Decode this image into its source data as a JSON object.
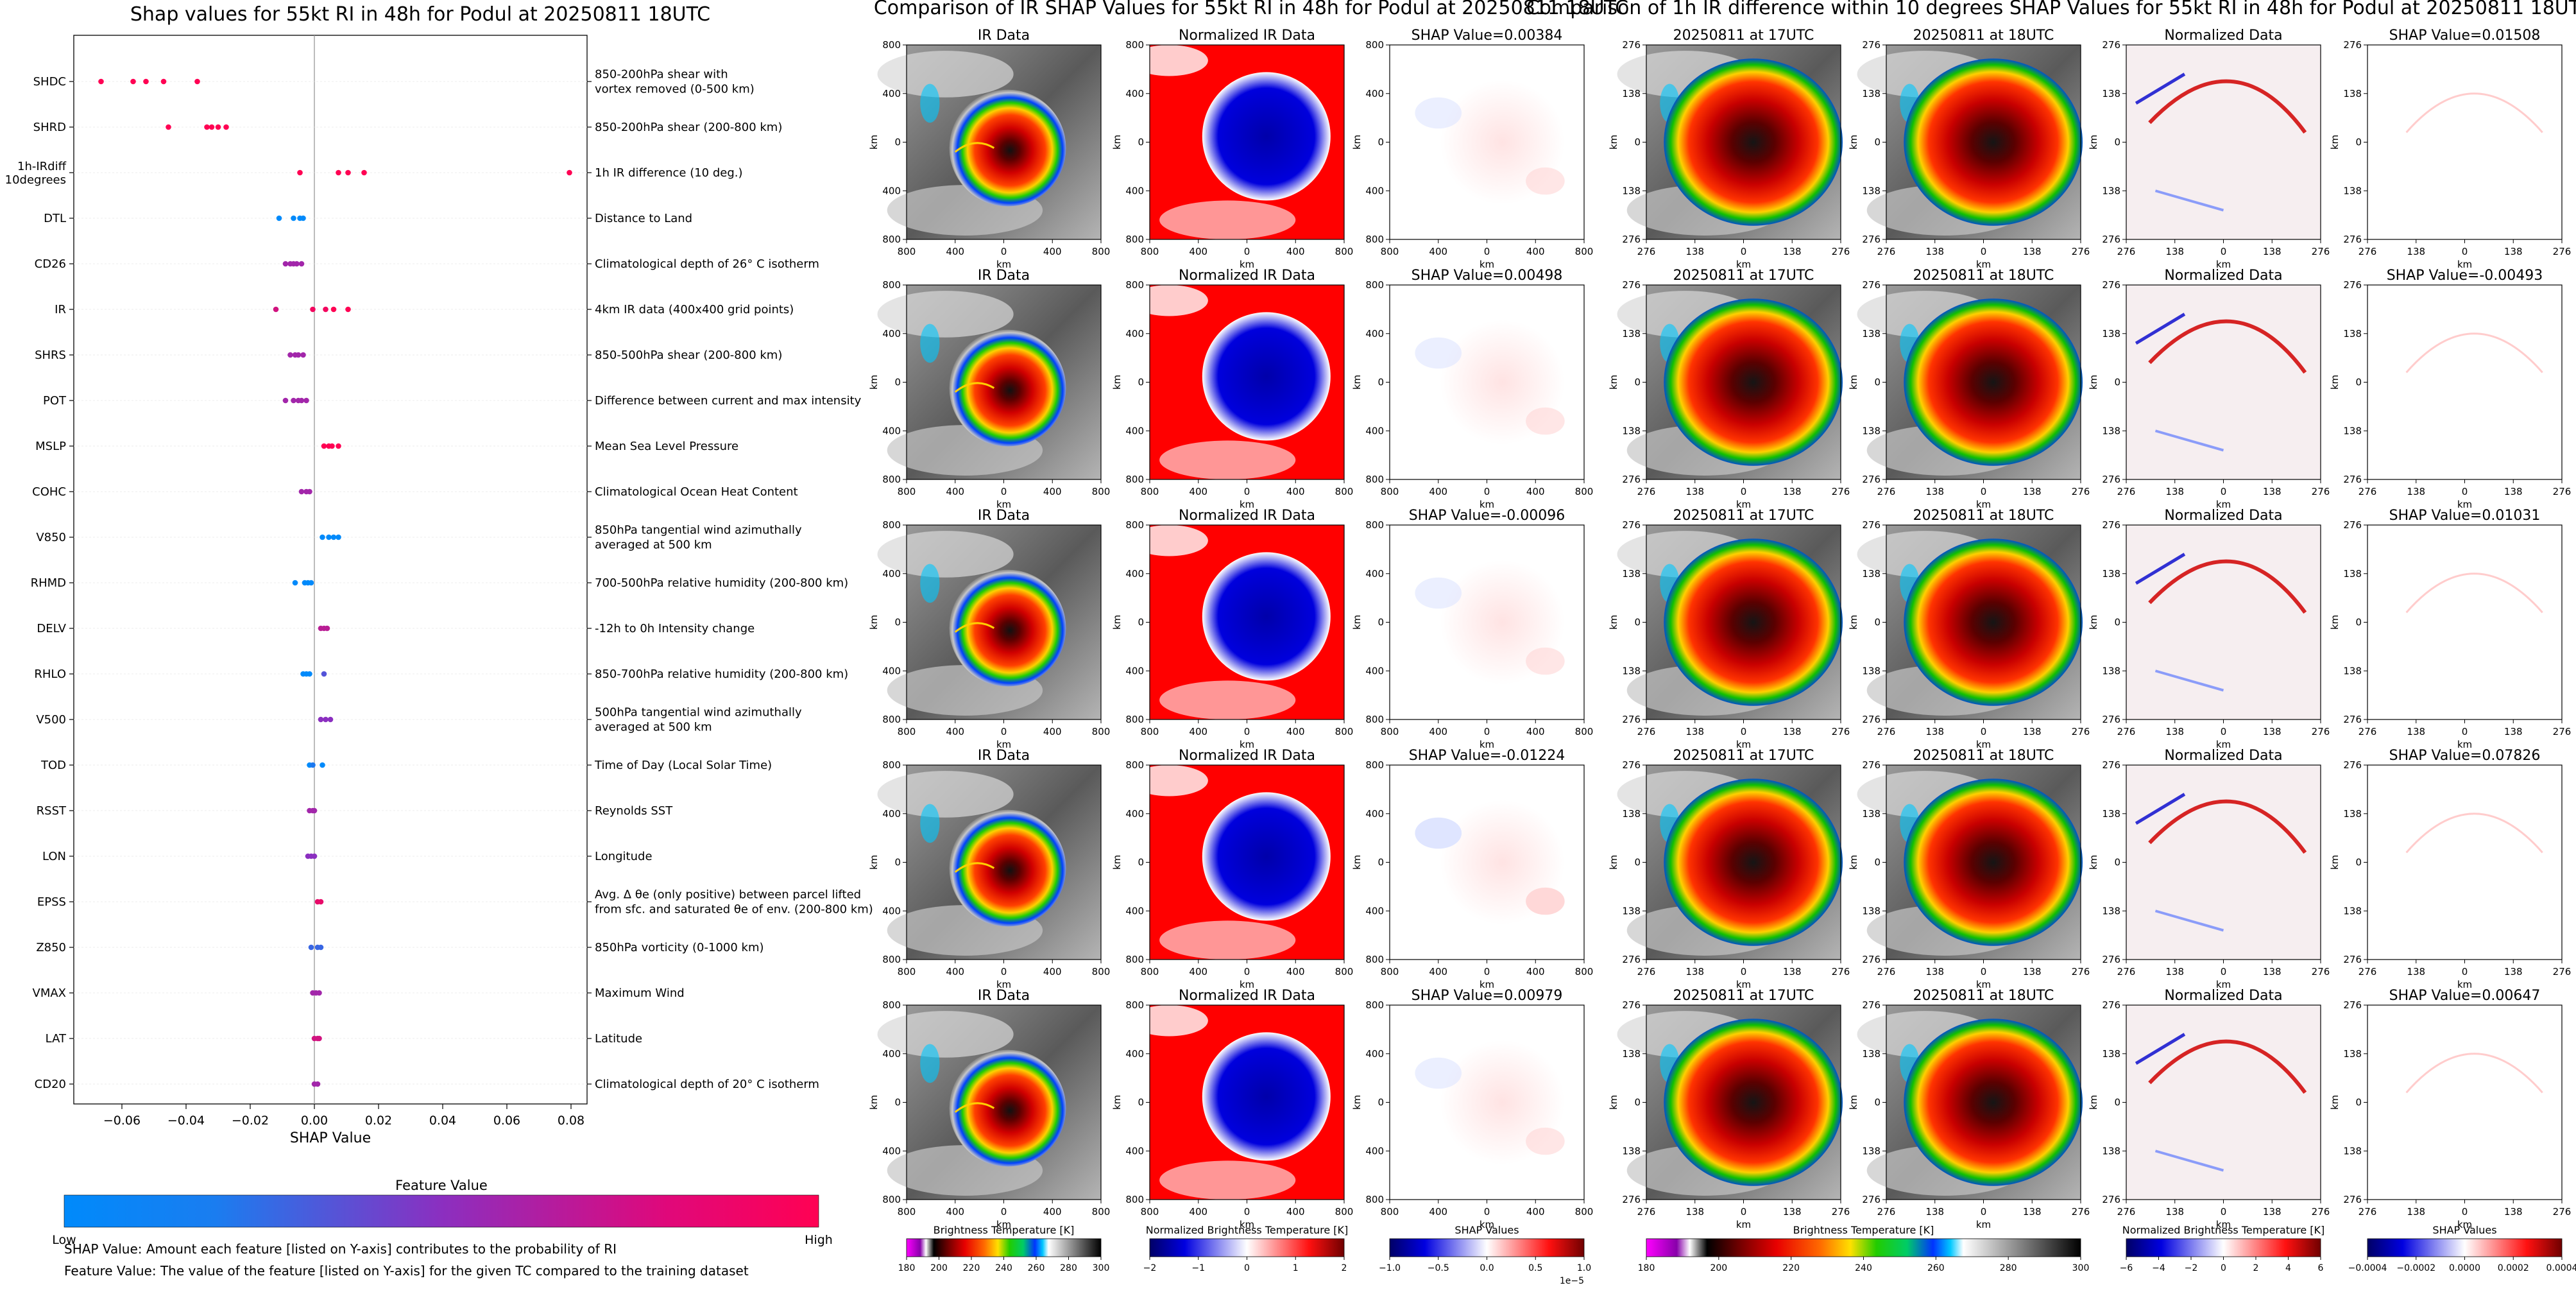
{
  "chart_data": [
    {
      "type": "scatter",
      "title": "Shap values for 55kt RI in 48h for Podul at 20250811 18UTC",
      "xlabel": "SHAP Value",
      "xlim": [
        -0.075,
        0.085
      ],
      "xticks": [
        -0.06,
        -0.04,
        -0.02,
        0.0,
        0.02,
        0.04,
        0.06,
        0.08
      ],
      "xtick_labels": [
        "−0.06",
        "−0.04",
        "−0.02",
        "0.00",
        "0.02",
        "0.04",
        "0.06",
        "0.08"
      ],
      "colorbar": {
        "label": "Feature Value",
        "low": "Low",
        "high": "High",
        "colors": [
          "#008afb",
          "#8b2fc0",
          "#ff0153"
        ]
      },
      "features": [
        {
          "name": "SHDC",
          "desc": [
            "850-200hPa shear with",
            "vortex removed (0-500 km)"
          ],
          "points": [
            [
              -0.0665,
              1
            ],
            [
              -0.0565,
              1
            ],
            [
              -0.0525,
              1
            ],
            [
              -0.047,
              1
            ],
            [
              -0.0365,
              1
            ]
          ]
        },
        {
          "name": "SHRD",
          "desc": [
            "850-200hPa shear (200-800 km)"
          ],
          "points": [
            [
              -0.0455,
              1
            ],
            [
              -0.0335,
              1
            ],
            [
              -0.032,
              1
            ],
            [
              -0.03,
              1
            ],
            [
              -0.0275,
              1
            ]
          ]
        },
        {
          "name": "1h-IRdiff 10degrees",
          "name_lines": [
            "1h-IRdiff",
            "10degrees"
          ],
          "desc": [
            "1h IR difference (10 deg.)"
          ],
          "points": [
            [
              -0.0045,
              1
            ],
            [
              0.0075,
              1
            ],
            [
              0.0105,
              1
            ],
            [
              0.0155,
              1
            ],
            [
              0.0795,
              1
            ]
          ]
        },
        {
          "name": "DTL",
          "desc": [
            "Distance to Land"
          ],
          "points": [
            [
              -0.011,
              0
            ],
            [
              -0.0065,
              0
            ],
            [
              -0.0045,
              0
            ],
            [
              -0.0035,
              0
            ]
          ]
        },
        {
          "name": "CD26",
          "desc": [
            "Climatological depth of 26° C isotherm"
          ],
          "points": [
            [
              -0.009,
              0.6
            ],
            [
              -0.0075,
              0.6
            ],
            [
              -0.0065,
              0.6
            ],
            [
              -0.0055,
              0.6
            ],
            [
              -0.004,
              0.6
            ]
          ]
        },
        {
          "name": "IR",
          "desc": [
            "4km IR data (400x400 grid points)"
          ],
          "points": [
            [
              -0.012,
              0.8
            ],
            [
              -0.0005,
              0.95
            ],
            [
              0.0035,
              0.95
            ],
            [
              0.006,
              1
            ],
            [
              0.0105,
              1
            ]
          ]
        },
        {
          "name": "SHRS",
          "desc": [
            "850-500hPa shear (200-800 km)"
          ],
          "points": [
            [
              -0.0075,
              0.6
            ],
            [
              -0.006,
              0.6
            ],
            [
              -0.005,
              0.6
            ],
            [
              -0.0035,
              0.6
            ]
          ]
        },
        {
          "name": "POT",
          "desc": [
            "Difference between current and max intensity"
          ],
          "points": [
            [
              -0.009,
              0.6
            ],
            [
              -0.0065,
              0.6
            ],
            [
              -0.005,
              0.6
            ],
            [
              -0.004,
              0.6
            ],
            [
              -0.0025,
              0.6
            ]
          ]
        },
        {
          "name": "MSLP",
          "desc": [
            "Mean Sea Level Pressure"
          ],
          "points": [
            [
              0.003,
              1
            ],
            [
              0.0045,
              1
            ],
            [
              0.0055,
              1
            ],
            [
              0.0075,
              1
            ]
          ]
        },
        {
          "name": "COHC",
          "desc": [
            "Climatological Ocean Heat Content"
          ],
          "points": [
            [
              -0.004,
              0.6
            ],
            [
              -0.0025,
              0.6
            ],
            [
              -0.0015,
              0.6
            ]
          ]
        },
        {
          "name": "V850",
          "desc": [
            "850hPa tangential wind azimuthally",
            "averaged at 500 km"
          ],
          "points": [
            [
              0.0025,
              0
            ],
            [
              0.0045,
              0
            ],
            [
              0.006,
              0
            ],
            [
              0.0075,
              0
            ]
          ]
        },
        {
          "name": "RHMD",
          "desc": [
            "700-500hPa relative humidity (200-800 km)"
          ],
          "points": [
            [
              -0.006,
              0
            ],
            [
              -0.003,
              0
            ],
            [
              -0.002,
              0
            ],
            [
              -0.001,
              0
            ]
          ]
        },
        {
          "name": "DELV",
          "desc": [
            "-12h to 0h Intensity change"
          ],
          "points": [
            [
              0.002,
              0.7
            ],
            [
              0.003,
              0.7
            ],
            [
              0.004,
              0.7
            ]
          ]
        },
        {
          "name": "RHLO",
          "desc": [
            "850-700hPa relative humidity (200-800 km)"
          ],
          "points": [
            [
              -0.0035,
              0
            ],
            [
              -0.0025,
              0
            ],
            [
              -0.0015,
              0
            ],
            [
              0.003,
              0.3
            ]
          ]
        },
        {
          "name": "V500",
          "desc": [
            "500hPa tangential wind azimuthally",
            "averaged at 500 km"
          ],
          "points": [
            [
              0.002,
              0.5
            ],
            [
              0.0035,
              0.5
            ],
            [
              0.005,
              0.5
            ]
          ]
        },
        {
          "name": "TOD",
          "desc": [
            "Time of Day (Local Solar Time)"
          ],
          "points": [
            [
              -0.0015,
              0
            ],
            [
              -0.0005,
              0.1
            ],
            [
              0.0025,
              0
            ]
          ]
        },
        {
          "name": "RSST",
          "desc": [
            "Reynolds SST"
          ],
          "points": [
            [
              -0.0015,
              0.6
            ],
            [
              -0.0005,
              0.6
            ],
            [
              0.0,
              0.6
            ]
          ]
        },
        {
          "name": "LON",
          "desc": [
            "Longitude"
          ],
          "points": [
            [
              -0.002,
              0.5
            ],
            [
              -0.001,
              0.5
            ],
            [
              0.0,
              0.5
            ]
          ]
        },
        {
          "name": "EPSS",
          "desc": [
            "Avg. Δ θe (only positive) between parcel lifted",
            "from sfc. and saturated θe of env. (200-800 km)"
          ],
          "points": [
            [
              0.001,
              0.9
            ],
            [
              0.002,
              0.9
            ]
          ]
        },
        {
          "name": "Z850",
          "desc": [
            "850hPa vorticity (0-1000 km)"
          ],
          "points": [
            [
              -0.001,
              0.2
            ],
            [
              0.001,
              0.2
            ],
            [
              0.002,
              0.2
            ]
          ]
        },
        {
          "name": "VMAX",
          "desc": [
            "Maximum Wind"
          ],
          "points": [
            [
              -0.0005,
              0.6
            ],
            [
              0.0005,
              0.6
            ],
            [
              0.0015,
              0.6
            ]
          ]
        },
        {
          "name": "LAT",
          "desc": [
            "Latitude"
          ],
          "points": [
            [
              0.0,
              0.8
            ],
            [
              0.001,
              0.8
            ],
            [
              0.0015,
              0.8
            ]
          ]
        },
        {
          "name": "CD20",
          "desc": [
            "Climatological depth of 20° C isotherm"
          ],
          "points": [
            [
              0.0,
              0.6
            ],
            [
              0.001,
              0.6
            ]
          ]
        }
      ]
    },
    {
      "type": "heatmap",
      "title": "Comparison of IR SHAP Values for 55kt RI in 48h for Podul at 20250811 18UTC",
      "xlabel": "km",
      "ylabel": "km",
      "ticks": [
        "800",
        "400",
        "0",
        "400",
        "800"
      ],
      "rows": [
        {
          "panels": [
            "IR Data",
            "Normalized IR Data",
            "SHAP Value=0.00384"
          ]
        },
        {
          "panels": [
            "IR Data",
            "Normalized IR Data",
            "SHAP Value=0.00498"
          ]
        },
        {
          "panels": [
            "IR Data",
            "Normalized IR Data",
            "SHAP Value=-0.00096"
          ]
        },
        {
          "panels": [
            "IR Data",
            "Normalized IR Data",
            "SHAP Value=-0.01224"
          ]
        },
        {
          "panels": [
            "IR Data",
            "Normalized IR Data",
            "SHAP Value=0.00979"
          ]
        }
      ],
      "colorbars": [
        {
          "label": "Brightness Temperature [K]",
          "ticks": [
            "180",
            "200",
            "220",
            "240",
            "260",
            "280",
            "300"
          ]
        },
        {
          "label": "Normalized Brightness Temperature [K]",
          "ticks": [
            "−2",
            "−1",
            "0",
            "1",
            "2"
          ]
        },
        {
          "label": "SHAP Values",
          "ticks": [
            "−1.0",
            "−0.5",
            "0.0",
            "0.5",
            "1.0"
          ],
          "offset": "1e−5"
        }
      ]
    },
    {
      "type": "heatmap",
      "title": "Comparison of 1h IR difference within 10 degrees SHAP Values for 55kt RI in 48h for Podul at 20250811 18UTC",
      "xlabel": "km",
      "ylabel": "km",
      "ticks": [
        "276",
        "138",
        "0",
        "138",
        "276"
      ],
      "rows": [
        {
          "panels": [
            "20250811 at 17UTC",
            "20250811 at 18UTC",
            "Normalized Data",
            "SHAP Value=0.01508"
          ]
        },
        {
          "panels": [
            "20250811 at 17UTC",
            "20250811 at 18UTC",
            "Normalized Data",
            "SHAP Value=-0.00493"
          ]
        },
        {
          "panels": [
            "20250811 at 17UTC",
            "20250811 at 18UTC",
            "Normalized Data",
            "SHAP Value=0.01031"
          ]
        },
        {
          "panels": [
            "20250811 at 17UTC",
            "20250811 at 18UTC",
            "Normalized Data",
            "SHAP Value=0.07826"
          ]
        },
        {
          "panels": [
            "20250811 at 17UTC",
            "20250811 at 18UTC",
            "Normalized Data",
            "SHAP Value=0.00647"
          ]
        }
      ],
      "colorbars": [
        {
          "label": "Brightness Temperature [K]",
          "ticks": [
            "180",
            "200",
            "220",
            "240",
            "260",
            "280",
            "300"
          ]
        },
        {
          "label": "Normalized Brightness Temperature [K]",
          "ticks": [
            "−6",
            "−4",
            "−2",
            "0",
            "2",
            "4",
            "6"
          ]
        },
        {
          "label": "SHAP Values",
          "ticks": [
            "−0.0004",
            "−0.0002",
            "0.0000",
            "0.0002",
            "0.0004"
          ]
        }
      ]
    }
  ],
  "notes": {
    "shap_value": "SHAP Value: Amount each feature [listed on Y-axis] contributes to the probability of RI",
    "feature_value": "Feature Value: The value of the feature [listed on Y-axis] for the given TC compared to the training dataset"
  }
}
